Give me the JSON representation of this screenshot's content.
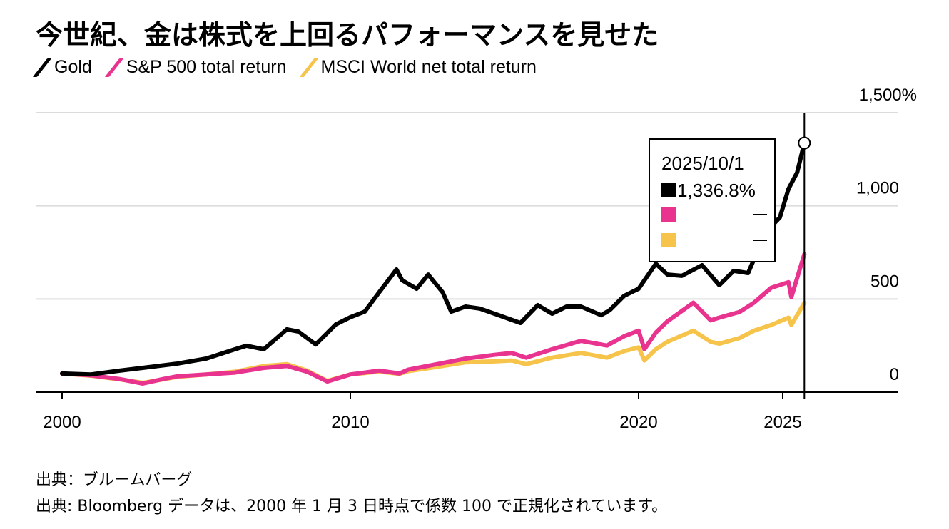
{
  "title": "今世紀、金は株式を上回るパフォーマンスを見せた",
  "legend": [
    {
      "label": "Gold",
      "color": "#000000"
    },
    {
      "label": "S&P 500 total return",
      "color": "#e8338f"
    },
    {
      "label": "MSCI World net total return",
      "color": "#f6c44a"
    }
  ],
  "tooltip": {
    "date": "2025/10/1",
    "rows": [
      {
        "series": "Gold",
        "color": "#000000",
        "value": "1,336.8%"
      },
      {
        "series": "S&P 500 total return",
        "color": "#e8338f",
        "value": "—"
      },
      {
        "series": "MSCI World net total return",
        "color": "#f6c44a",
        "value": "—"
      }
    ]
  },
  "footer": {
    "source_label": "出典：ブルームバーグ",
    "note": "出典: Bloomberg データは、2000 年 1 月 3 日時点で係数 100 で正規化されています。"
  },
  "chart_data": {
    "type": "line",
    "title": "今世紀、金は株式を上回るパフォーマンスを見せた",
    "xlabel": "",
    "ylabel": "",
    "xlim": [
      2000,
      2028
    ],
    "ylim": [
      0,
      1500
    ],
    "x_ticks": [
      2000,
      2010,
      2020,
      2025
    ],
    "x_tick_labels": [
      "2000",
      "2010",
      "2020",
      "2025"
    ],
    "y_ticks": [
      0,
      500,
      1000,
      1500
    ],
    "y_tick_labels": [
      "0",
      "500",
      "1,000",
      "1,500%"
    ],
    "grid": true,
    "legend_position": "top-left",
    "crosshair_x": 2025.75,
    "highlight_point": {
      "series": "Gold",
      "x": 2025.75,
      "y": 1336.8
    },
    "series": [
      {
        "name": "Gold",
        "color": "#000000",
        "x": [
          2000,
          2001,
          2002,
          2003,
          2004,
          2005,
          2006,
          2006.4,
          2007,
          2007.8,
          2008.2,
          2008.8,
          2009.5,
          2010,
          2010.5,
          2011,
          2011.6,
          2011.8,
          2012.3,
          2012.7,
          2013.2,
          2013.5,
          2014,
          2014.5,
          2015,
          2015.9,
          2016.5,
          2017,
          2017.5,
          2018,
          2018.7,
          2019,
          2019.5,
          2020,
          2020.6,
          2021,
          2021.5,
          2022.2,
          2022.8,
          2023.3,
          2023.8,
          2024.2,
          2024.5,
          2024.9,
          2025.2,
          2025.5,
          2025.75
        ],
        "values": [
          100,
          95,
          115,
          134,
          153,
          180,
          230,
          249,
          230,
          337,
          325,
          256,
          364,
          402,
          432,
          536,
          658,
          600,
          555,
          631,
          536,
          432,
          459,
          448,
          421,
          371,
          467,
          421,
          459,
          459,
          413,
          440,
          517,
          555,
          689,
          631,
          624,
          681,
          574,
          651,
          639,
          785,
          873,
          938,
          1091,
          1179,
          1336.8
        ]
      },
      {
        "name": "S&P 500 total return",
        "color": "#e8338f",
        "x": [
          2000,
          2001,
          2002,
          2002.8,
          2003.5,
          2004,
          2005,
          2006,
          2007,
          2007.8,
          2008.5,
          2009.2,
          2010,
          2011,
          2011.7,
          2012,
          2013,
          2014,
          2015,
          2015.6,
          2016.1,
          2017,
          2018,
          2018.9,
          2019.5,
          2020,
          2020.2,
          2020.6,
          2021,
          2021.9,
          2022.5,
          2022.8,
          2023.5,
          2024,
          2024.6,
          2025.2,
          2025.3,
          2025.75
        ],
        "values": [
          100,
          90,
          70,
          46,
          70,
          85,
          95,
          105,
          130,
          140,
          110,
          57,
          95,
          115,
          100,
          120,
          150,
          180,
          200,
          210,
          185,
          230,
          275,
          250,
          300,
          330,
          230,
          320,
          380,
          480,
          385,
          400,
          430,
          480,
          560,
          590,
          510,
          740
        ]
      },
      {
        "name": "MSCI World net total return",
        "color": "#f6c44a",
        "x": [
          2000,
          2001,
          2002,
          2002.8,
          2003.5,
          2004,
          2005,
          2006,
          2007,
          2007.8,
          2008.5,
          2009.2,
          2010,
          2011,
          2011.7,
          2012,
          2013,
          2014,
          2015,
          2015.6,
          2016.1,
          2017,
          2018,
          2018.9,
          2019.5,
          2020,
          2020.2,
          2020.6,
          2021,
          2021.9,
          2022.5,
          2022.8,
          2023.5,
          2024,
          2024.6,
          2025.2,
          2025.3,
          2025.75
        ],
        "values": [
          100,
          88,
          68,
          50,
          68,
          82,
          95,
          110,
          140,
          150,
          115,
          60,
          95,
          110,
          98,
          112,
          135,
          160,
          165,
          170,
          150,
          185,
          210,
          185,
          220,
          240,
          170,
          230,
          270,
          330,
          270,
          260,
          290,
          330,
          360,
          400,
          360,
          480
        ]
      }
    ]
  }
}
